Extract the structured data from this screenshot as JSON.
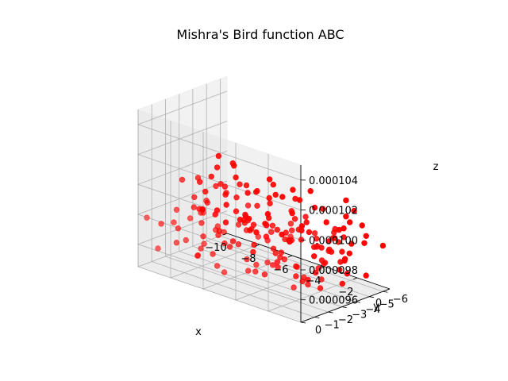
{
  "chart_data": {
    "type": "scatter",
    "projection": "3d",
    "title": "Mishra's Bird function ABC",
    "xlabel": "x",
    "ylabel": "y",
    "zlabel": "z",
    "xlim": [
      -10,
      0
    ],
    "ylim": [
      -6.5,
      0
    ],
    "zlim": [
      9.45e-05,
      0.000105
    ],
    "xticks": [
      -10,
      -8,
      -6,
      -4,
      -2,
      0
    ],
    "xtick_labels": [
      "−10",
      "−8",
      "−6",
      "−4",
      "−2",
      "0"
    ],
    "yticks": [
      -6,
      -5,
      -4,
      -3,
      -2,
      -1,
      0
    ],
    "ytick_labels": [
      "−6",
      "−5",
      "−4",
      "−3",
      "−2",
      "−1",
      "0"
    ],
    "zticks": [
      9.6e-05,
      9.8e-05,
      0.0001,
      0.000102,
      0.000104
    ],
    "ztick_labels": [
      "0.000096",
      "0.000098",
      "0.000100",
      "0.000102",
      "0.000104"
    ],
    "grid": true,
    "marker_color": "#ff0000",
    "pane_color": "#f2f2f2",
    "point_count": 188
  }
}
